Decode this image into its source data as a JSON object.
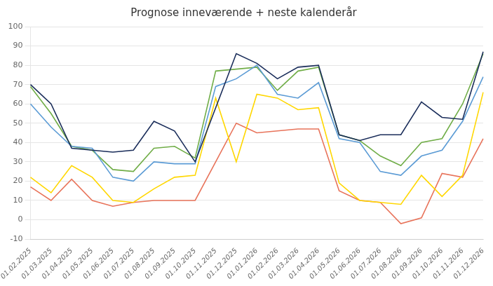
{
  "chart_data": {
    "type": "line",
    "title": "Prognose inneværende + neste kalenderår",
    "categories": [
      "01.02.2025",
      "01.03.2025",
      "01.04.2025",
      "01.05.2025",
      "01.06.2025",
      "01.07.2025",
      "01.08.2025",
      "01.09.2025",
      "01.10.2025",
      "01.11.2025",
      "01.12.2025",
      "01.01.2026",
      "01.02.2026",
      "01.03.2026",
      "01.04.2026",
      "01.05.2026",
      "01.06.2026",
      "01.07.2026",
      "01.08.2026",
      "01.09.2026",
      "01.10.2026",
      "01.11.2026",
      "01.12.2026"
    ],
    "series": [
      {
        "color": "#1a2d5a",
        "values": [
          70,
          60,
          37,
          36,
          35,
          36,
          51,
          46,
          30,
          58,
          86,
          81,
          73,
          79,
          80,
          44,
          41,
          44,
          44,
          61,
          53,
          52,
          87
        ]
      },
      {
        "color": "#5b9bd5",
        "values": [
          60,
          48,
          38,
          37,
          22,
          20,
          30,
          29,
          29,
          69,
          73,
          80,
          65,
          63,
          71,
          42,
          40,
          25,
          23,
          33,
          36,
          51,
          74
        ]
      },
      {
        "color": "#70ad47",
        "values": [
          69,
          55,
          38,
          36,
          26,
          25,
          37,
          38,
          32,
          77,
          78,
          79,
          67,
          77,
          79,
          44,
          41,
          33,
          28,
          40,
          42,
          60,
          86
        ]
      },
      {
        "color": "#ffd700",
        "values": [
          22,
          14,
          28,
          22,
          10,
          9,
          16,
          22,
          23,
          63,
          30,
          65,
          63,
          57,
          58,
          19,
          10,
          9,
          8,
          23,
          12,
          23,
          66
        ]
      },
      {
        "color": "#e8735a",
        "values": [
          17,
          10,
          21,
          10,
          7,
          9,
          10,
          10,
          10,
          30,
          50,
          45,
          46,
          47,
          47,
          15,
          10,
          9,
          -2,
          1,
          24,
          22,
          42
        ]
      }
    ],
    "ylim": [
      -10,
      100
    ],
    "yticks": [
      -10,
      0,
      10,
      20,
      30,
      40,
      50,
      60,
      70,
      80,
      90,
      100
    ],
    "grid": true
  }
}
